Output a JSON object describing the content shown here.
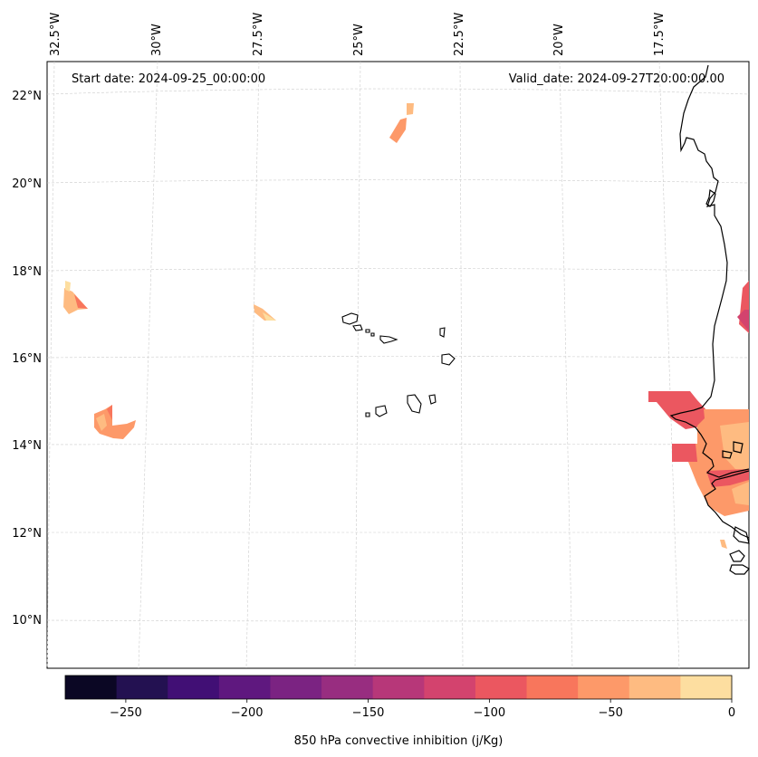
{
  "header": {
    "start_date": "Start date: 2024-09-25_00:00:00",
    "valid_date": "Valid_date: 2024-09-27T20:00:00.00"
  },
  "lon_labels": [
    "32.5°W",
    "30°W",
    "27.5°W",
    "25°W",
    "22.5°W",
    "20°W",
    "17.5°W"
  ],
  "lat_labels": [
    "22°N",
    "20°N",
    "18°N",
    "16°N",
    "14°N",
    "12°N",
    "10°N"
  ],
  "colorbar": {
    "label": "850 hPa convective inhibition (j/Kg)",
    "ticks": [
      "−250",
      "−200",
      "−150",
      "−100",
      "−50",
      "0"
    ],
    "colors": [
      "#0b0724",
      "#231151",
      "#410f75",
      "#5f187f",
      "#7b2382",
      "#982d80",
      "#b73779",
      "#d3436e",
      "#eb5760",
      "#f8765c",
      "#fd9969",
      "#febb81",
      "#fddea0"
    ],
    "range": [
      -275,
      0
    ]
  },
  "field_colors": {
    "light": "#fddea0",
    "pale": "#febb81",
    "orange": "#fd9969",
    "salmon": "#f8765c",
    "red": "#eb5760",
    "rose": "#d3436e"
  }
}
